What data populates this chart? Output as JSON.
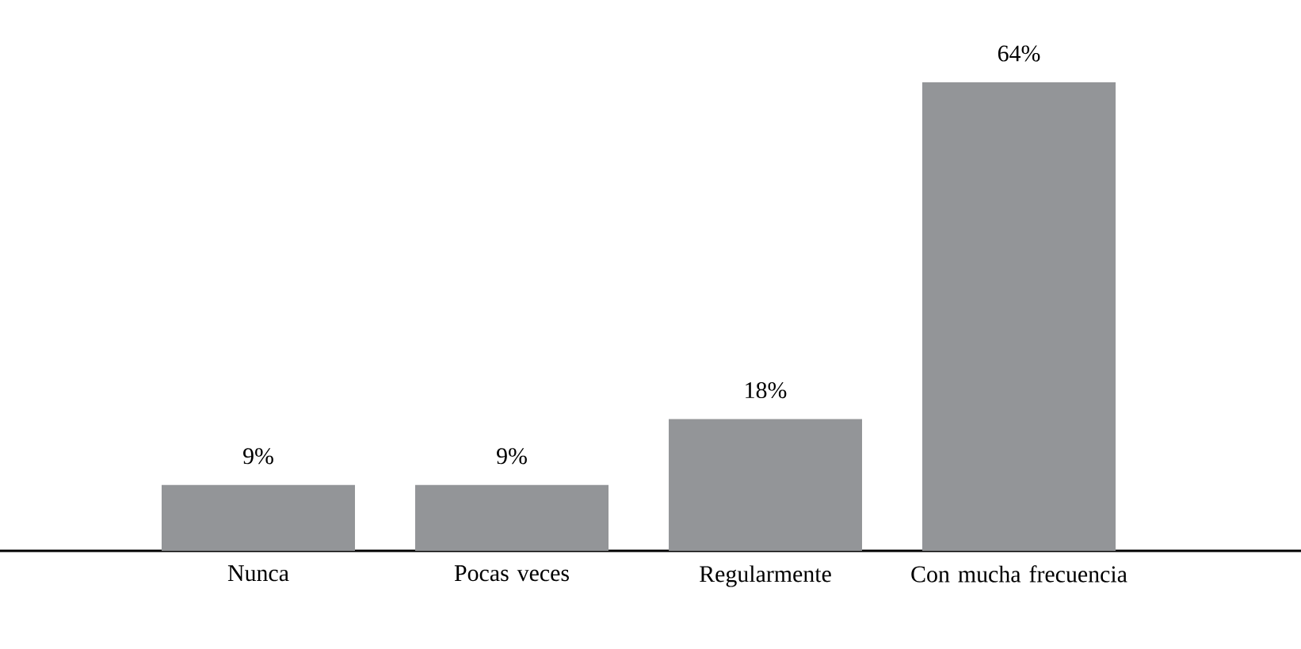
{
  "chart_data": {
    "type": "bar",
    "categories": [
      "Nunca",
      "Pocas veces",
      "Regularmente",
      "Con mucha frecuencia"
    ],
    "values": [
      9,
      9,
      18,
      64
    ],
    "value_labels": [
      "9%",
      "9%",
      "18%",
      "64%"
    ],
    "color": "#939598"
  }
}
